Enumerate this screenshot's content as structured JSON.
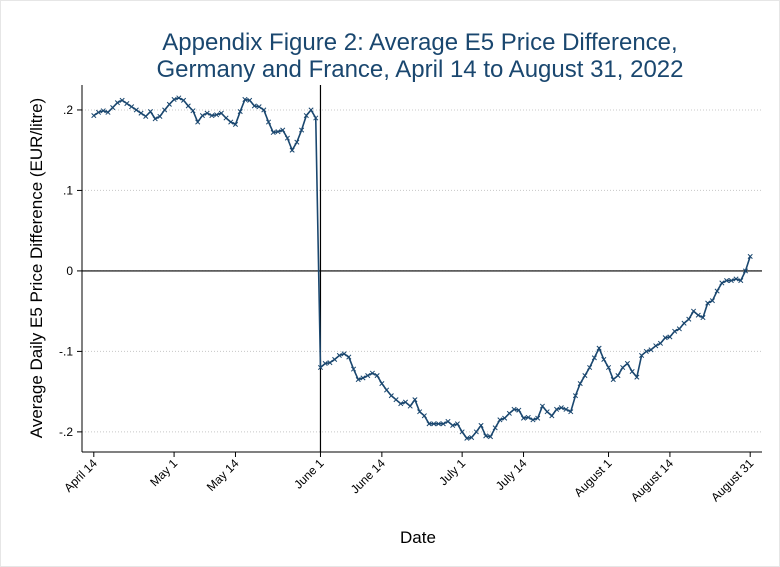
{
  "chart_data": {
    "type": "line",
    "title": [
      "Appendix Figure 2: Average E5 Price Difference,",
      "Germany and France, April 14 to August 31, 2022"
    ],
    "xlabel": "Date",
    "ylabel": "Average Daily E5 Price Difference (EUR/litre)",
    "x": [
      "2022-04-14",
      "2022-04-15",
      "2022-04-16",
      "2022-04-17",
      "2022-04-18",
      "2022-04-19",
      "2022-04-20",
      "2022-04-21",
      "2022-04-22",
      "2022-04-23",
      "2022-04-24",
      "2022-04-25",
      "2022-04-26",
      "2022-04-27",
      "2022-04-28",
      "2022-04-29",
      "2022-04-30",
      "2022-05-01",
      "2022-05-02",
      "2022-05-03",
      "2022-05-04",
      "2022-05-05",
      "2022-05-06",
      "2022-05-07",
      "2022-05-08",
      "2022-05-09",
      "2022-05-10",
      "2022-05-11",
      "2022-05-12",
      "2022-05-13",
      "2022-05-14",
      "2022-05-15",
      "2022-05-16",
      "2022-05-17",
      "2022-05-18",
      "2022-05-19",
      "2022-05-20",
      "2022-05-21",
      "2022-05-22",
      "2022-05-23",
      "2022-05-24",
      "2022-05-25",
      "2022-05-26",
      "2022-05-27",
      "2022-05-28",
      "2022-05-29",
      "2022-05-30",
      "2022-05-31",
      "2022-06-01",
      "2022-06-02",
      "2022-06-03",
      "2022-06-04",
      "2022-06-05",
      "2022-06-06",
      "2022-06-07",
      "2022-06-08",
      "2022-06-09",
      "2022-06-10",
      "2022-06-11",
      "2022-06-12",
      "2022-06-13",
      "2022-06-14",
      "2022-06-15",
      "2022-06-16",
      "2022-06-17",
      "2022-06-18",
      "2022-06-19",
      "2022-06-20",
      "2022-06-21",
      "2022-06-22",
      "2022-06-23",
      "2022-06-24",
      "2022-06-25",
      "2022-06-26",
      "2022-06-27",
      "2022-06-28",
      "2022-06-29",
      "2022-06-30",
      "2022-07-01",
      "2022-07-02",
      "2022-07-03",
      "2022-07-04",
      "2022-07-05",
      "2022-07-06",
      "2022-07-07",
      "2022-07-08",
      "2022-07-09",
      "2022-07-10",
      "2022-07-11",
      "2022-07-12",
      "2022-07-13",
      "2022-07-14",
      "2022-07-15",
      "2022-07-16",
      "2022-07-17",
      "2022-07-18",
      "2022-07-19",
      "2022-07-20",
      "2022-07-21",
      "2022-07-22",
      "2022-07-23",
      "2022-07-24",
      "2022-07-25",
      "2022-07-26",
      "2022-07-27",
      "2022-07-28",
      "2022-07-29",
      "2022-07-30",
      "2022-07-31",
      "2022-08-01",
      "2022-08-02",
      "2022-08-03",
      "2022-08-04",
      "2022-08-05",
      "2022-08-06",
      "2022-08-07",
      "2022-08-08",
      "2022-08-09",
      "2022-08-10",
      "2022-08-11",
      "2022-08-12",
      "2022-08-13",
      "2022-08-14",
      "2022-08-15",
      "2022-08-16",
      "2022-08-17",
      "2022-08-18",
      "2022-08-19",
      "2022-08-20",
      "2022-08-21",
      "2022-08-22",
      "2022-08-23",
      "2022-08-24",
      "2022-08-25",
      "2022-08-26",
      "2022-08-27",
      "2022-08-28",
      "2022-08-29",
      "2022-08-30",
      "2022-08-31"
    ],
    "series": [
      {
        "color": "#1a476f",
        "values": [
          0.193,
          0.197,
          0.199,
          0.197,
          0.203,
          0.209,
          0.212,
          0.208,
          0.204,
          0.2,
          0.196,
          0.192,
          0.198,
          0.189,
          0.192,
          0.2,
          0.207,
          0.213,
          0.215,
          0.212,
          0.205,
          0.199,
          0.185,
          0.193,
          0.196,
          0.193,
          0.194,
          0.196,
          0.19,
          0.185,
          0.182,
          0.198,
          0.213,
          0.212,
          0.205,
          0.204,
          0.2,
          0.185,
          0.172,
          0.173,
          0.175,
          0.165,
          0.15,
          0.16,
          0.175,
          0.193,
          0.2,
          0.19,
          -0.12,
          -0.115,
          -0.114,
          -0.11,
          -0.105,
          -0.103,
          -0.107,
          -0.122,
          -0.135,
          -0.133,
          -0.13,
          -0.127,
          -0.13,
          -0.14,
          -0.148,
          -0.155,
          -0.16,
          -0.165,
          -0.163,
          -0.168,
          -0.16,
          -0.175,
          -0.18,
          -0.19,
          -0.19,
          -0.19,
          -0.19,
          -0.187,
          -0.192,
          -0.19,
          -0.2,
          -0.208,
          -0.207,
          -0.2,
          -0.192,
          -0.205,
          -0.206,
          -0.195,
          -0.185,
          -0.183,
          -0.177,
          -0.172,
          -0.173,
          -0.183,
          -0.182,
          -0.185,
          -0.183,
          -0.168,
          -0.175,
          -0.18,
          -0.172,
          -0.17,
          -0.172,
          -0.175,
          -0.155,
          -0.14,
          -0.13,
          -0.12,
          -0.108,
          -0.096,
          -0.11,
          -0.12,
          -0.135,
          -0.13,
          -0.12,
          -0.115,
          -0.125,
          -0.132,
          -0.105,
          -0.1,
          -0.098,
          -0.093,
          -0.09,
          -0.083,
          -0.082,
          -0.075,
          -0.072,
          -0.065,
          -0.06,
          -0.05,
          -0.055,
          -0.058,
          -0.04,
          -0.037,
          -0.025,
          -0.015,
          -0.012,
          -0.012,
          -0.01,
          -0.012,
          0.0,
          0.018
        ]
      }
    ],
    "xlim": [
      "2022-04-11T12:00",
      "2022-09-02T12:00"
    ],
    "xticks": [
      {
        "value": "2022-04-14",
        "label": "April 14"
      },
      {
        "value": "2022-05-01",
        "label": "May 1"
      },
      {
        "value": "2022-05-14",
        "label": "May 14"
      },
      {
        "value": "2022-06-01",
        "label": "June 1"
      },
      {
        "value": "2022-06-14",
        "label": "June 14"
      },
      {
        "value": "2022-07-01",
        "label": "July 1"
      },
      {
        "value": "2022-07-14",
        "label": "July 14"
      },
      {
        "value": "2022-08-01",
        "label": "August 1"
      },
      {
        "value": "2022-08-14",
        "label": "August 14"
      },
      {
        "value": "2022-08-31",
        "label": "August 31"
      }
    ],
    "ylim": [
      -0.225,
      0.231
    ],
    "yticks": [
      {
        "value": -0.2,
        "label": "-.2"
      },
      {
        "value": -0.1,
        "label": "-.1"
      },
      0,
      {
        "value": 0.1,
        "label": ".1"
      },
      {
        "value": 0.2,
        "label": ".2"
      }
    ],
    "grid": true,
    "xline": "2022-06-01",
    "yline": 0
  }
}
